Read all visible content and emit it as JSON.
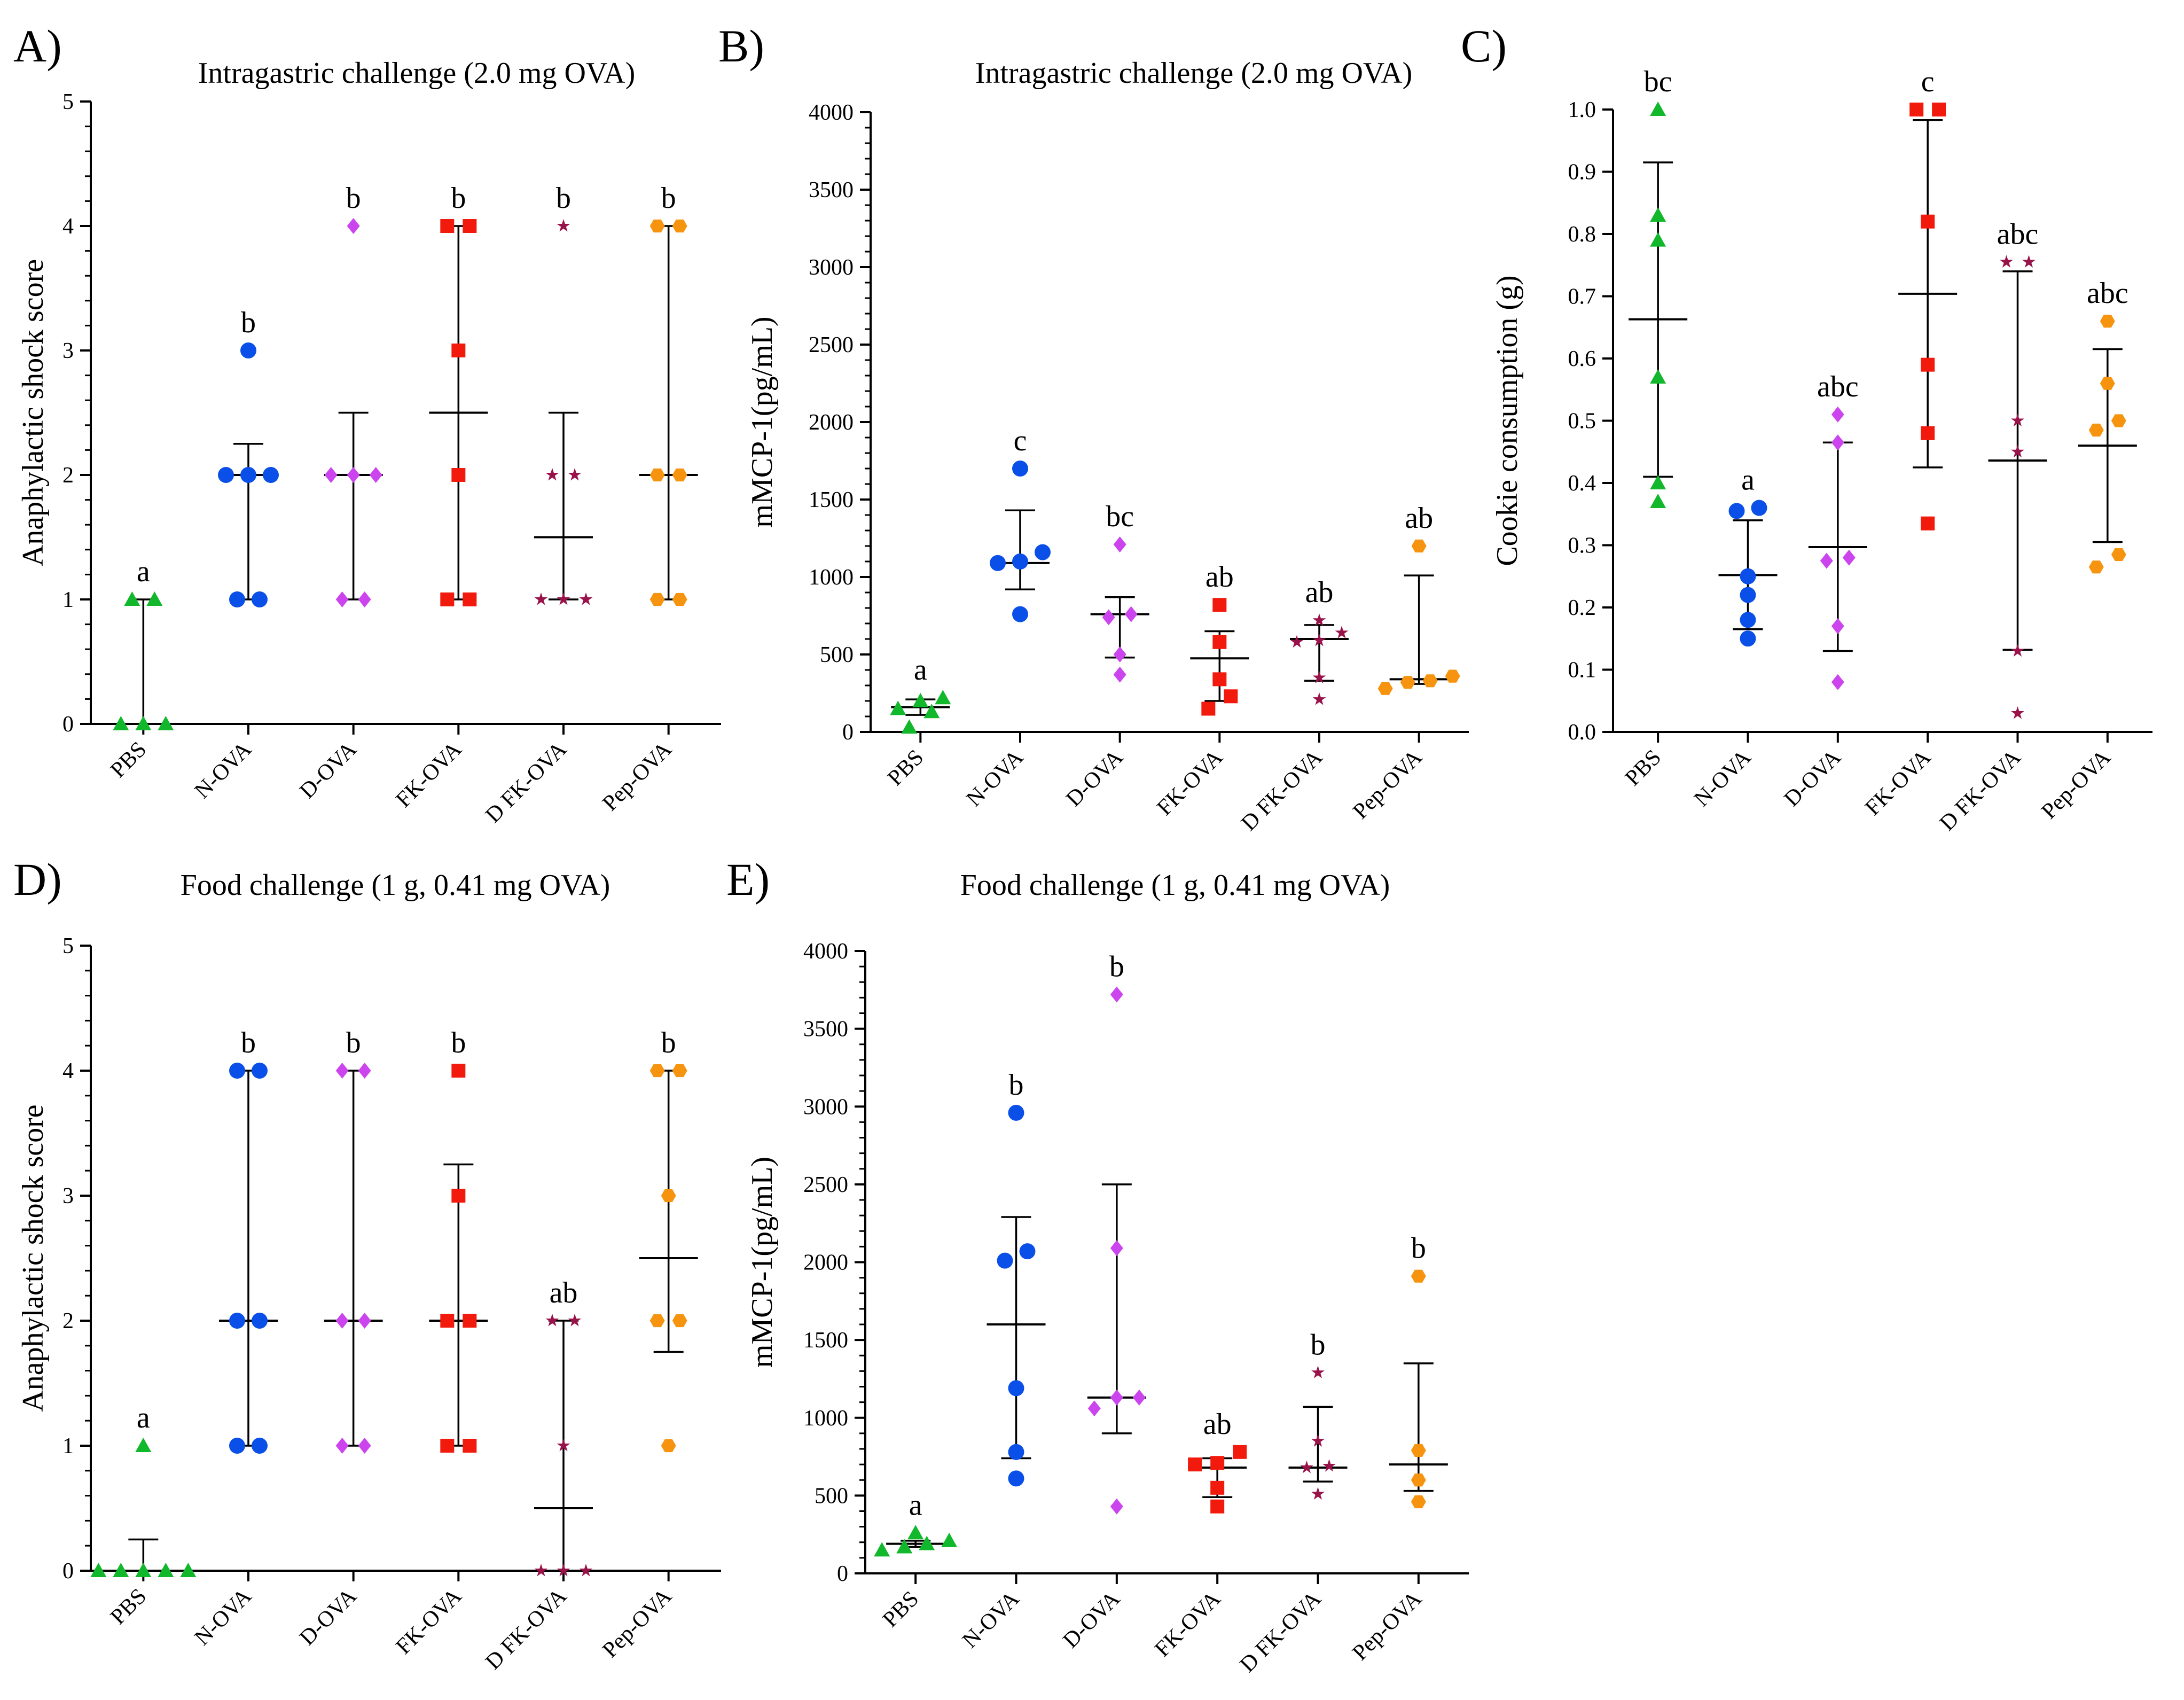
{
  "figure": {
    "groups": [
      "PBS",
      "N-OVA",
      "D-OVA",
      "FK-OVA",
      "D FK-OVA",
      "Pep-OVA"
    ],
    "group_colors": [
      "#11b82b",
      "#0a4fe8",
      "#cc44ee",
      "#f21a0d",
      "#99134a",
      "#f7940f"
    ],
    "group_markers": [
      "triangle",
      "circle",
      "diamond",
      "square",
      "star",
      "hexagon"
    ]
  },
  "chart_data": [
    {
      "panel": "A)",
      "type": "scatter",
      "title": "Intragastric challenge (2.0 mg OVA)",
      "ylabel": "Anaphylactic shock score",
      "ylim": [
        0,
        5
      ],
      "yticks": [
        0,
        1,
        2,
        3,
        4,
        5
      ],
      "categories": [
        "PBS",
        "N-OVA",
        "D-OVA",
        "FK-OVA",
        "D FK-OVA",
        "Pep-OVA"
      ],
      "letters": [
        "a",
        "b",
        "b",
        "b",
        "b",
        "b"
      ],
      "summary": [
        {
          "center": 0,
          "low": 0,
          "high": 1
        },
        {
          "center": 2,
          "low": 1,
          "high": 2.25
        },
        {
          "center": 2,
          "low": 1,
          "high": 2.5
        },
        {
          "center": 2.5,
          "low": 1,
          "high": 4
        },
        {
          "center": 1.5,
          "low": 1,
          "high": 2.5
        },
        {
          "center": 2,
          "low": 1,
          "high": 4
        }
      ],
      "points": [
        [
          0,
          0,
          0,
          1,
          1
        ],
        [
          1,
          1,
          2,
          2,
          2,
          3
        ],
        [
          1,
          1,
          2,
          2,
          2,
          4
        ],
        [
          1,
          1,
          2,
          3,
          4,
          4
        ],
        [
          1,
          1,
          1,
          2,
          2,
          4
        ],
        [
          1,
          1,
          2,
          2,
          4,
          4
        ]
      ]
    },
    {
      "panel": "B)",
      "type": "scatter",
      "title": "Intragastric challenge (2.0 mg OVA)",
      "ylabel": "mMCP-1(pg/mL)",
      "ylim": [
        0,
        4000
      ],
      "yticks": [
        0,
        500,
        1000,
        1500,
        2000,
        2500,
        3000,
        3500,
        4000
      ],
      "categories": [
        "PBS",
        "N-OVA",
        "D-OVA",
        "FK-OVA",
        "D FK-OVA",
        "Pep-OVA"
      ],
      "letters": [
        "a",
        "c",
        "bc",
        "ab",
        "ab",
        "ab"
      ],
      "summary": [
        {
          "center": 160,
          "low": 110,
          "high": 210
        },
        {
          "center": 1090,
          "low": 920,
          "high": 1430
        },
        {
          "center": 760,
          "low": 480,
          "high": 870
        },
        {
          "center": 475,
          "low": 200,
          "high": 650
        },
        {
          "center": 600,
          "low": 330,
          "high": 690
        },
        {
          "center": 340,
          "low": 310,
          "high": 1010
        }
      ],
      "points": [
        [
          30,
          130,
          150,
          200,
          220
        ],
        [
          760,
          1090,
          1100,
          1160,
          1700
        ],
        [
          370,
          500,
          740,
          760,
          1210
        ],
        [
          150,
          230,
          340,
          580,
          820
        ],
        [
          210,
          350,
          580,
          590,
          640,
          720
        ],
        [
          280,
          320,
          330,
          360,
          1200
        ]
      ]
    },
    {
      "panel": "C)",
      "type": "scatter",
      "title": "",
      "ylabel": "Cookie consumption (g)",
      "ylim": [
        0,
        1.0
      ],
      "yticks": [
        0,
        0.1,
        0.2,
        0.3,
        0.4,
        0.5,
        0.6,
        0.7,
        0.8,
        0.9,
        1.0
      ],
      "categories": [
        "PBS",
        "N-OVA",
        "D-OVA",
        "FK-OVA",
        "D FK-OVA",
        "Pep-OVA"
      ],
      "letters": [
        "bc",
        "a",
        "abc",
        "c",
        "abc",
        "abc"
      ],
      "summary": [
        {
          "center": 0.663,
          "low": 0.41,
          "high": 0.915
        },
        {
          "center": 0.252,
          "low": 0.165,
          "high": 0.34
        },
        {
          "center": 0.297,
          "low": 0.13,
          "high": 0.465
        },
        {
          "center": 0.704,
          "low": 0.425,
          "high": 0.983
        },
        {
          "center": 0.436,
          "low": 0.132,
          "high": 0.74
        },
        {
          "center": 0.46,
          "low": 0.305,
          "high": 0.615
        }
      ],
      "points": [
        [
          0.37,
          0.4,
          0.57,
          0.79,
          0.83,
          1.0
        ],
        [
          0.15,
          0.18,
          0.22,
          0.25,
          0.355,
          0.36
        ],
        [
          0.08,
          0.17,
          0.275,
          0.28,
          0.465,
          0.51
        ],
        [
          0.335,
          0.48,
          0.59,
          0.82,
          1.0,
          1.0
        ],
        [
          0.03,
          0.13,
          0.45,
          0.5,
          0.755,
          0.755
        ],
        [
          0.265,
          0.285,
          0.485,
          0.5,
          0.56,
          0.66
        ]
      ]
    },
    {
      "panel": "D)",
      "type": "scatter",
      "title": "Food challenge (1 g, 0.41 mg OVA)",
      "ylabel": "Anaphylactic shock score",
      "ylim": [
        0,
        5
      ],
      "yticks": [
        0,
        1,
        2,
        3,
        4,
        5
      ],
      "categories": [
        "PBS",
        "N-OVA",
        "D-OVA",
        "FK-OVA",
        "D FK-OVA",
        "Pep-OVA"
      ],
      "letters": [
        "a",
        "b",
        "b",
        "b",
        "ab",
        "b"
      ],
      "summary": [
        {
          "center": 0,
          "low": 0,
          "high": 0.25
        },
        {
          "center": 2,
          "low": 1,
          "high": 4
        },
        {
          "center": 2,
          "low": 1,
          "high": 4
        },
        {
          "center": 2,
          "low": 1,
          "high": 3.25
        },
        {
          "center": 0.5,
          "low": 0,
          "high": 2
        },
        {
          "center": 2.5,
          "low": 1.75,
          "high": 4
        }
      ],
      "points": [
        [
          0,
          0,
          0,
          0,
          0,
          1
        ],
        [
          1,
          1,
          2,
          2,
          4,
          4
        ],
        [
          1,
          1,
          2,
          2,
          4,
          4
        ],
        [
          1,
          1,
          2,
          2,
          3,
          4
        ],
        [
          0,
          0,
          0,
          1,
          2,
          2
        ],
        [
          1,
          2,
          2,
          3,
          4,
          4
        ]
      ]
    },
    {
      "panel": "E)",
      "type": "scatter",
      "title": "Food challenge (1 g, 0.41 mg OVA)",
      "ylabel": "mMCP-1(pg/mL)",
      "ylim": [
        0,
        4000
      ],
      "yticks": [
        0,
        500,
        1000,
        1500,
        2000,
        2500,
        3000,
        3500,
        4000
      ],
      "categories": [
        "PBS",
        "N-OVA",
        "D-OVA",
        "FK-OVA",
        "D FK-OVA",
        "Pep-OVA"
      ],
      "letters": [
        "a",
        "b",
        "b",
        "ab",
        "b",
        "b"
      ],
      "summary": [
        {
          "center": 190,
          "low": 170,
          "high": 210
        },
        {
          "center": 1600,
          "low": 740,
          "high": 2290
        },
        {
          "center": 1130,
          "low": 900,
          "high": 2500
        },
        {
          "center": 680,
          "low": 490,
          "high": 740
        },
        {
          "center": 680,
          "low": 590,
          "high": 1070
        },
        {
          "center": 700,
          "low": 530,
          "high": 1350
        }
      ],
      "points": [
        [
          150,
          170,
          190,
          210,
          260
        ],
        [
          610,
          780,
          1190,
          2010,
          2070,
          2960
        ],
        [
          430,
          1060,
          1130,
          1130,
          2090,
          3720
        ],
        [
          430,
          550,
          700,
          710,
          780
        ],
        [
          510,
          680,
          690,
          850,
          1290
        ],
        [
          460,
          600,
          790,
          1910
        ]
      ]
    }
  ]
}
